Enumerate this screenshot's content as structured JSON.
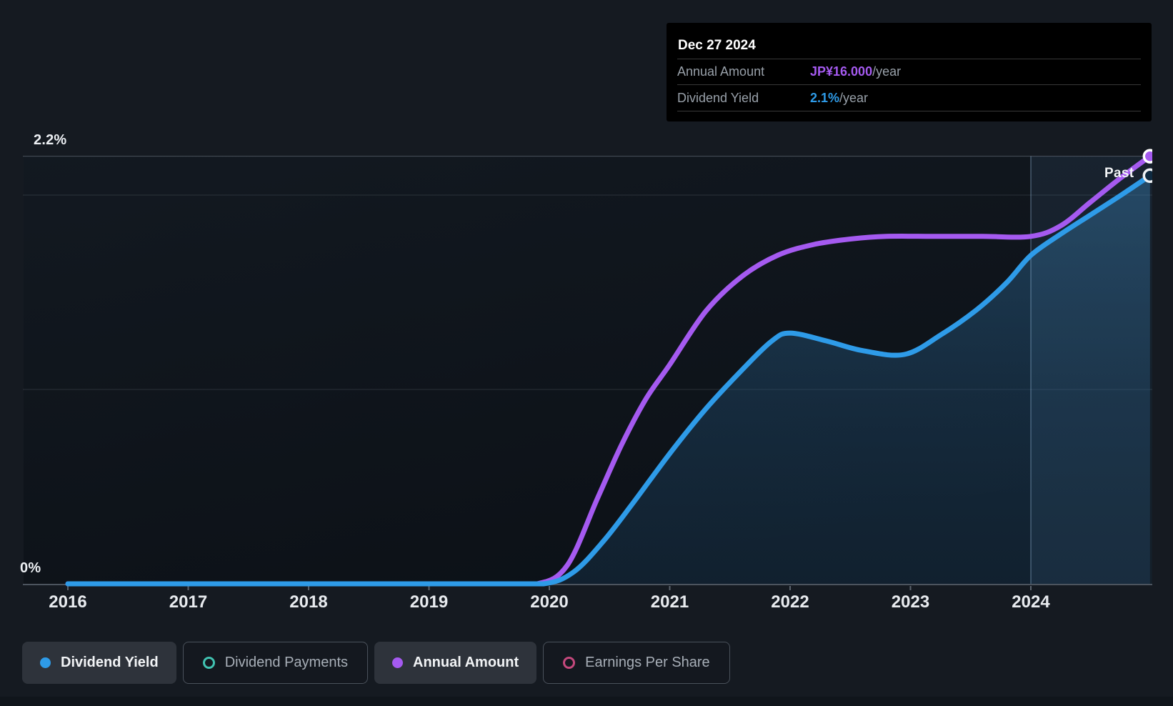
{
  "page": {
    "background": "#151A21",
    "accent_blue": "#2E9BE8",
    "accent_purple": "#A55AF0"
  },
  "chart": {
    "y_axis_top_label": "2.2%",
    "y_axis_bottom_label": "0%",
    "past_label": "Past"
  },
  "tooltip": {
    "date": "Dec 27 2024",
    "rows": [
      {
        "label": "Annual Amount",
        "value": "JP¥16.000",
        "suffix": "/year",
        "value_color": "#A55AF0"
      },
      {
        "label": "Dividend Yield",
        "value": "2.1%",
        "suffix": "/year",
        "value_color": "#2E9BE8"
      }
    ]
  },
  "legend": {
    "items": [
      {
        "label": "Dividend Yield",
        "color": "#2E9BE8",
        "marker": "filled",
        "active": true
      },
      {
        "label": "Dividend Payments",
        "color": "#41C2B1",
        "marker": "open",
        "active": false
      },
      {
        "label": "Annual Amount",
        "color": "#A55AF0",
        "marker": "filled",
        "active": true
      },
      {
        "label": "Earnings Per Share",
        "color": "#C4487C",
        "marker": "open",
        "active": false
      }
    ]
  },
  "chart_data": {
    "type": "line",
    "x_ticks": [
      "2016",
      "2017",
      "2018",
      "2019",
      "2020",
      "2021",
      "2022",
      "2023",
      "2024"
    ],
    "x_range": [
      2016,
      2024.99
    ],
    "y_axis": {
      "unit": "%",
      "range": [
        0,
        2.2
      ],
      "gridlines": [
        1.0,
        2.0,
        2.2
      ],
      "top_label": "2.2%",
      "bottom_label": "0%"
    },
    "secondary_axis": {
      "unit": "JP¥/year",
      "aligned_max": 16
    },
    "past_region_start": 2024,
    "grid": true,
    "legend_position": "bottom",
    "series": [
      {
        "name": "Dividend Yield",
        "axis": "percent",
        "unit": "%",
        "color": "#2E9BE8",
        "marker": "open",
        "points": [
          [
            2016,
            0
          ],
          [
            2016.5,
            0
          ],
          [
            2017,
            0
          ],
          [
            2017.5,
            0
          ],
          [
            2018,
            0
          ],
          [
            2018.5,
            0
          ],
          [
            2019,
            0
          ],
          [
            2019.5,
            0
          ],
          [
            2019.95,
            0
          ],
          [
            2020.2,
            0.06
          ],
          [
            2020.45,
            0.22
          ],
          [
            2020.7,
            0.42
          ],
          [
            2021,
            0.67
          ],
          [
            2021.3,
            0.9
          ],
          [
            2021.6,
            1.1
          ],
          [
            2021.85,
            1.25
          ],
          [
            2022,
            1.29
          ],
          [
            2022.3,
            1.25
          ],
          [
            2022.6,
            1.2
          ],
          [
            2022.95,
            1.18
          ],
          [
            2023.25,
            1.28
          ],
          [
            2023.55,
            1.41
          ],
          [
            2023.8,
            1.55
          ],
          [
            2024,
            1.69
          ],
          [
            2024.25,
            1.8
          ],
          [
            2024.5,
            1.9
          ],
          [
            2024.75,
            2.0
          ],
          [
            2024.99,
            2.1
          ]
        ]
      },
      {
        "name": "Annual Amount",
        "axis": "yen",
        "unit": "JP¥/year",
        "color": "#A55AF0",
        "marker": "filled",
        "points": [
          [
            2016,
            0
          ],
          [
            2016.5,
            0
          ],
          [
            2017,
            0
          ],
          [
            2017.5,
            0
          ],
          [
            2018,
            0
          ],
          [
            2018.5,
            0
          ],
          [
            2019,
            0
          ],
          [
            2019.5,
            0
          ],
          [
            2019.9,
            0
          ],
          [
            2020.15,
            0.7
          ],
          [
            2020.4,
            3.2
          ],
          [
            2020.6,
            5.2
          ],
          [
            2020.8,
            6.9
          ],
          [
            2021,
            8.2
          ],
          [
            2021.3,
            10.2
          ],
          [
            2021.6,
            11.5
          ],
          [
            2021.9,
            12.3
          ],
          [
            2022.2,
            12.7
          ],
          [
            2022.5,
            12.9
          ],
          [
            2022.8,
            13.0
          ],
          [
            2023.2,
            13.0
          ],
          [
            2023.6,
            13.0
          ],
          [
            2024,
            13.0
          ],
          [
            2024.25,
            13.4
          ],
          [
            2024.5,
            14.3
          ],
          [
            2024.75,
            15.2
          ],
          [
            2024.99,
            16.0
          ]
        ]
      }
    ]
  }
}
